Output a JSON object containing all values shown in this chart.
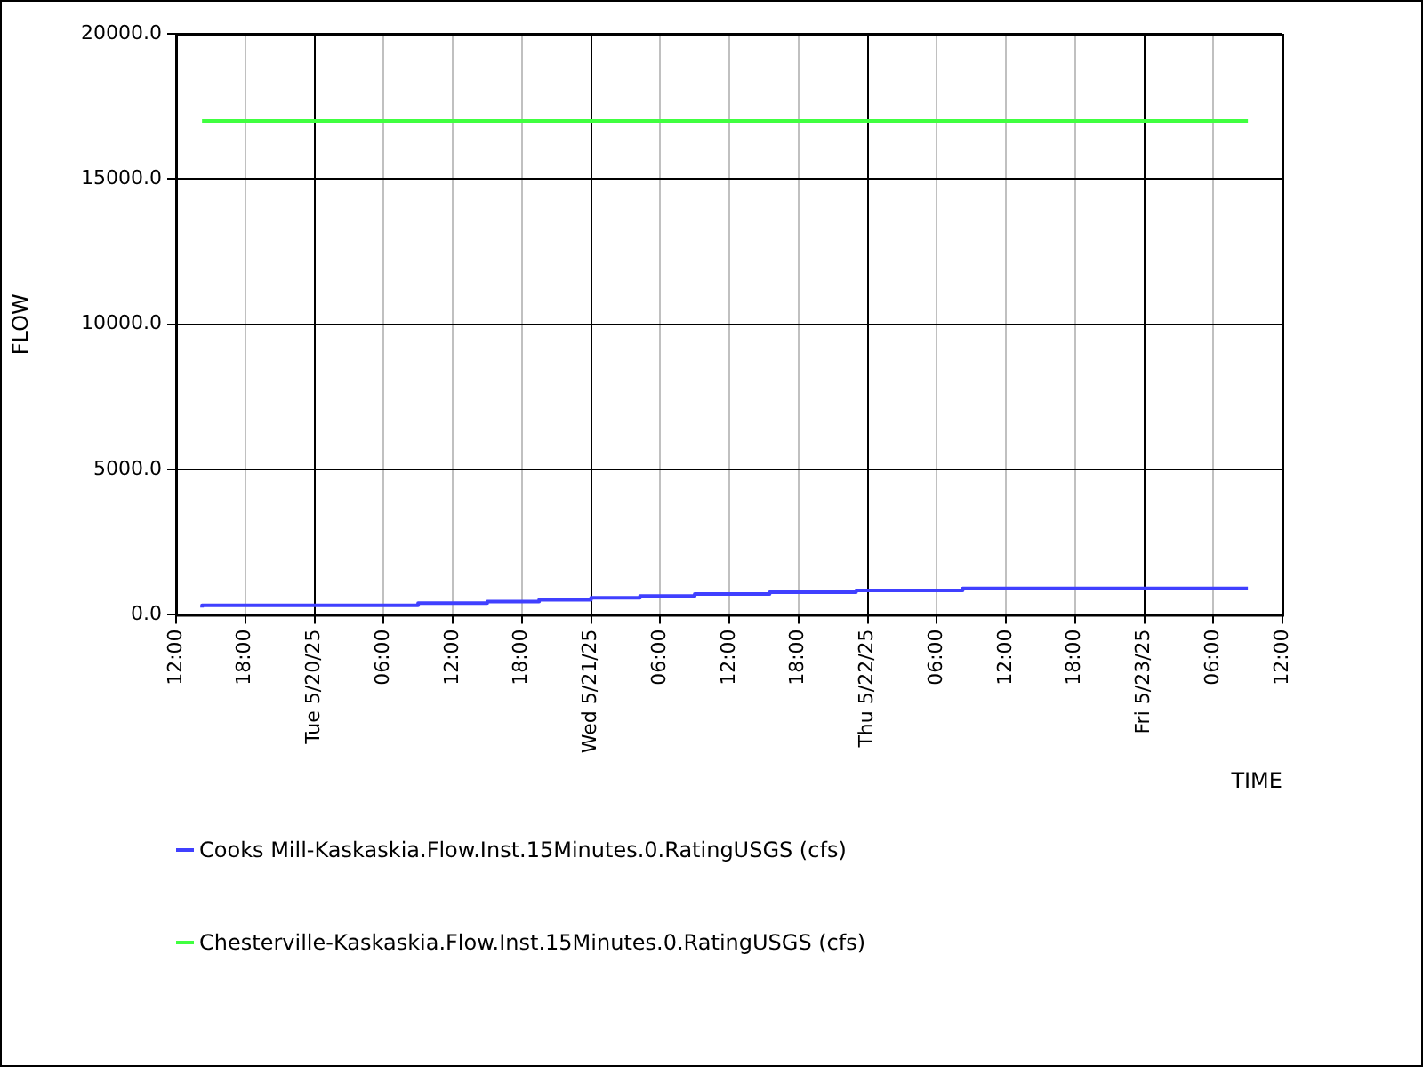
{
  "chart_data": {
    "type": "line",
    "xlabel": "TIME",
    "ylabel": "FLOW",
    "series": [
      {
        "name": "Cooks Mill-Kaskaskia.Flow.Inst.15Minutes.0.RatingUSGS (cfs)",
        "type": "step",
        "color": "#4040ff",
        "x": [
          "--05-19T14:15",
          "--05-20T09:00",
          "--05-20T15:00",
          "--05-20T19:30",
          "--05-21T00:00",
          "--05-21T04:15",
          "--05-21T09:00",
          "--05-21T15:30",
          "--05-21T23:00",
          "--05-22T08:15",
          "--05-22T18:00",
          "--05-23T09:00"
        ],
        "values": [
          250,
          330,
          400,
          460,
          520,
          590,
          650,
          720,
          780,
          840,
          910,
          910
        ]
      },
      {
        "name": "Chesterville-Kaskaskia.Flow.Inst.15Minutes.0.RatingUSGS (cfs)",
        "type": "line",
        "color": "#40ff40",
        "x": [
          "--05-19T14:15",
          "--05-23T09:00"
        ],
        "values": [
          17000,
          17000
        ]
      }
    ],
    "xlim": [
      "--05-19T12:00",
      "--05-23T12:00"
    ],
    "xticks": [
      {
        "value": "--05-19T12:00",
        "label": "12:00"
      },
      {
        "value": "--05-19T18:00",
        "label": "18:00"
      },
      {
        "value": "--05-20T00:00",
        "label": "Tue 5/20/25"
      },
      {
        "value": "--05-20T06:00",
        "label": "06:00"
      },
      {
        "value": "--05-20T12:00",
        "label": "12:00"
      },
      {
        "value": "--05-20T18:00",
        "label": "18:00"
      },
      {
        "value": "--05-21T00:00",
        "label": "Wed 5/21/25"
      },
      {
        "value": "--05-21T06:00",
        "label": "06:00"
      },
      {
        "value": "--05-21T12:00",
        "label": "12:00"
      },
      {
        "value": "--05-21T18:00",
        "label": "18:00"
      },
      {
        "value": "--05-22T00:00",
        "label": "Thu 5/22/25"
      },
      {
        "value": "--05-22T06:00",
        "label": "06:00"
      },
      {
        "value": "--05-22T12:00",
        "label": "12:00"
      },
      {
        "value": "--05-22T18:00",
        "label": "18:00"
      },
      {
        "value": "--05-23T00:00",
        "label": "Fri 5/23/25"
      },
      {
        "value": "--05-23T06:00",
        "label": "06:00"
      },
      {
        "value": "--05-23T12:00",
        "label": "12:00"
      }
    ],
    "ylim": [
      0,
      20000
    ],
    "yticks": [
      {
        "value": 0,
        "label": "0.0"
      },
      {
        "value": 5000,
        "label": "5000.0"
      },
      {
        "value": 10000,
        "label": "10000.0"
      },
      {
        "value": 15000,
        "label": "15000.0"
      },
      {
        "value": 20000,
        "label": "20000.0"
      }
    ],
    "grid": true,
    "legend": "bottom",
    "marker": "none"
  }
}
